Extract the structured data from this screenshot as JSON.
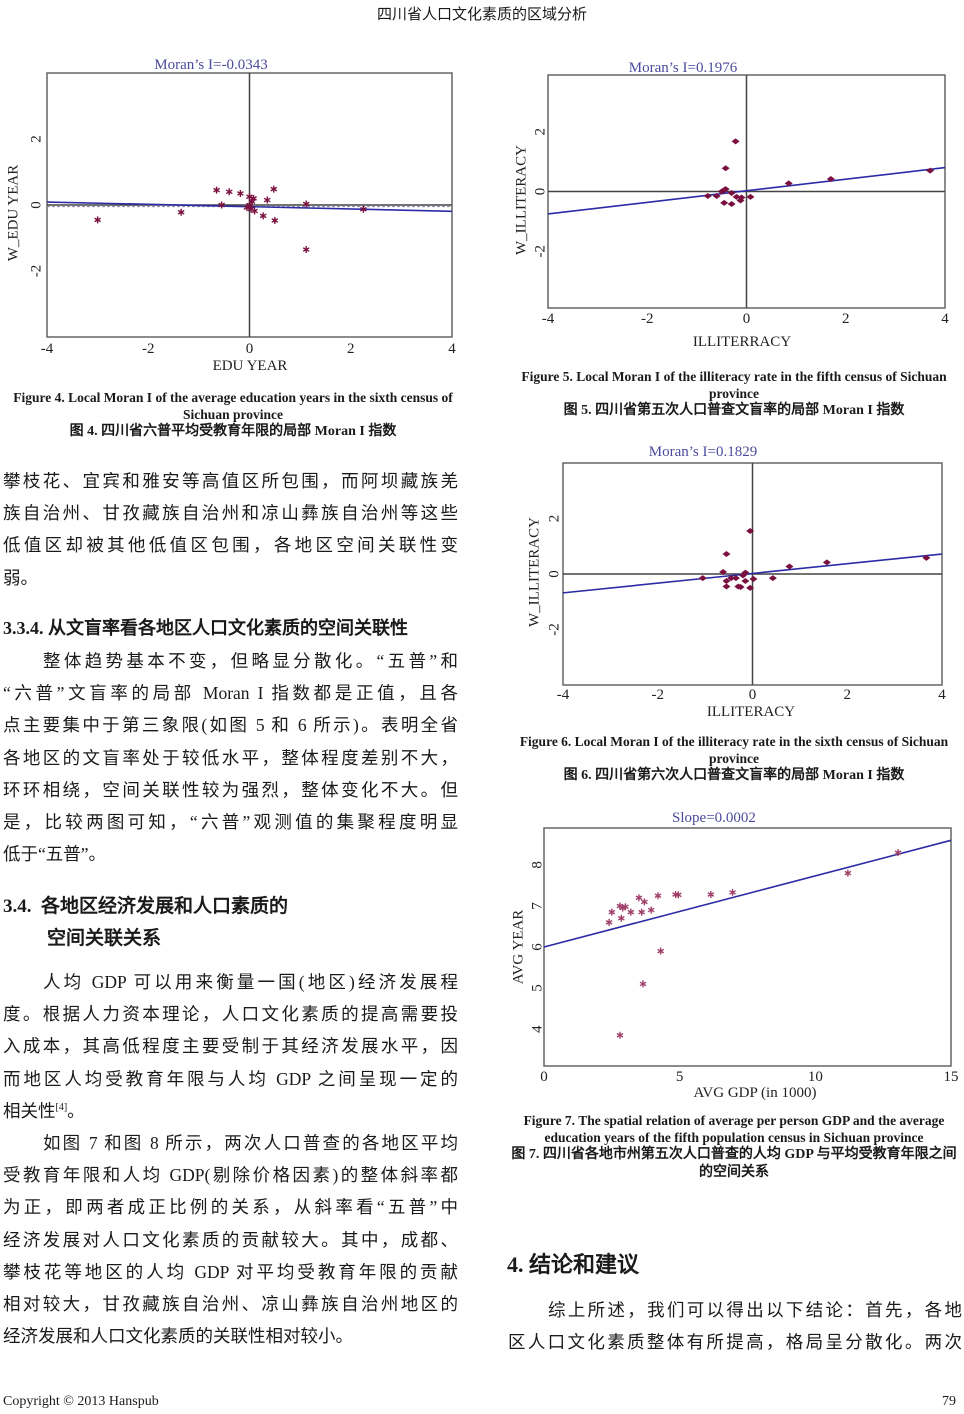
{
  "header": {
    "running_title": "四川省人口文化素质的区域分析"
  },
  "footer": {
    "copyright": "Copyright © 2013 Hanspub",
    "page_number": "79"
  },
  "figures": {
    "fig4": {
      "caption_en": "Figure 4. Local Moran I of the average education years in the sixth census of Sichuan province",
      "caption_zh": "图 4.  四川省六普平均受教育年限的局部 Moran I 指数"
    },
    "fig5": {
      "caption_en": "Figure 5. Local Moran I of the illiteracy rate in the fifth census of Sichuan province",
      "caption_zh": "图 5.  四川省第五次人口普查文盲率的局部 Moran I 指数"
    },
    "fig6": {
      "caption_en": "Figure 6. Local Moran I of the illiteracy rate in the sixth census of Sichuan province",
      "caption_zh": "图 6.  四川省第六次人口普查文盲率的局部 Moran I 指数"
    },
    "fig7": {
      "caption_en": "Figure 7. The spatial relation of average per person GDP and the average education years of the fifth population census in Sichuan province",
      "caption_zh": "图 7.  四川省各地市州第五次人口普查的人均 GDP 与平均受教育年限之间的空间关系"
    }
  },
  "left_column": {
    "para1": [
      "攀枝花、宜宾和雅安等高值区所包围，而阿坝藏族羌",
      "族自治州、甘孜藏族自治州和凉山彝族自治州等这些",
      "低值区却被其他低值区包围，各地区空间关联性变",
      "弱。"
    ],
    "heading_334": "3.3.4.  从文盲率看各地区人口文化素质的空间关联性",
    "para2": [
      "整体趋势基本不变，但略显分散化。“五普”和",
      "“六普”文盲率的局部 Moran I 指数都是正值，且各",
      "点主要集中于第三象限(如图 5 和 6 所示)。表明全省",
      "各地区的文盲率处于较低水平，整体程度差别不大，",
      "环环相绕，空间关联性较为强烈，整体变化不大。但",
      "是，比较两图可知，“六普”观测值的集聚程度明显",
      "低于“五普”。"
    ],
    "heading_34_num": "3.4.",
    "heading_34_line1": "各地区经济发展和人口素质的",
    "heading_34_line2": "空间关联关系",
    "para3": [
      "人均  GDP  可以用来衡量一国(地区)经济发展程",
      "度。根据人力资本理论，人口文化素质的提高需要投",
      "入成本，其高低程度主要受制于其经济发展水平，因",
      "而地区人均受教育年限与人均  GDP  之间呈现一定的",
      "相关性"
    ],
    "para3_ref": "[4]",
    "para3_end": "。",
    "para4": [
      "如图 7 和图 8 所示，两次人口普查的各地区平均",
      "受教育年限和人均 GDP(剔除价格因素)的整体斜率都",
      "为正，即两者成正比例的关系，从斜率看“五普”中",
      "经济发展对人口文化素质的贡献较大。其中，成都、",
      "攀枝花等地区的人均  GDP  对平均受教育年限的贡献",
      "相对较大，甘孜藏族自治州、凉山彝族自治州地区的",
      "经济发展和人口文化素质的关联性相对较小。"
    ]
  },
  "right_column": {
    "heading_4": "4.  结论和建议",
    "para5": [
      "综上所述，我们可以得出以下结论：首先，各地",
      "区人口文化素质整体有所提高，格局呈分散化。两次"
    ]
  },
  "colors": {
    "title": "#4b4b9c",
    "regression": "#2b2ba6",
    "marker": "#7a1040",
    "axis": "#555555"
  },
  "chart_data": [
    {
      "type": "scatter",
      "marker": "asterisk",
      "title": "Moran’s I=-0.0343",
      "xlabel": "EDU YEAR",
      "ylabel": "W_EDU YEAR",
      "xlim": [
        -4,
        4
      ],
      "ylim": [
        -4,
        4
      ],
      "xticks": [
        "-4",
        "-2",
        "0",
        "2",
        "4"
      ],
      "yticks": [
        "-2",
        "0",
        "2"
      ],
      "zero_axes": true,
      "fit_line": [
        [
          -4,
          0.09
        ],
        [
          4,
          -0.19
        ]
      ],
      "reference_line_y": -0.05,
      "points": [
        [
          -3.0,
          -0.45
        ],
        [
          -1.35,
          -0.22
        ],
        [
          -0.65,
          0.45
        ],
        [
          -0.4,
          0.4
        ],
        [
          -0.18,
          0.35
        ],
        [
          -0.55,
          0.0
        ],
        [
          0.0,
          0.25
        ],
        [
          0.08,
          0.2
        ],
        [
          0.05,
          0.1
        ],
        [
          0.0,
          0.0
        ],
        [
          -0.05,
          -0.08
        ],
        [
          0.03,
          -0.12
        ],
        [
          0.1,
          -0.18
        ],
        [
          0.27,
          -0.33
        ],
        [
          0.35,
          0.15
        ],
        [
          0.48,
          0.48
        ],
        [
          0.5,
          -0.47
        ],
        [
          1.12,
          0.03
        ],
        [
          1.12,
          -1.35
        ],
        [
          2.25,
          -0.13
        ]
      ]
    },
    {
      "type": "scatter",
      "marker": "diamond",
      "title": "Moran’s I=0.1976",
      "xlabel": "ILLITERRACY",
      "ylabel": "W_ILLITERACY",
      "xlim": [
        -4,
        4
      ],
      "ylim": [
        -3.9,
        3.9
      ],
      "xticks": [
        "-4",
        "-2",
        "0",
        "2",
        "4"
      ],
      "yticks": [
        "-2",
        "0",
        "2"
      ],
      "zero_axes": true,
      "fit_line": [
        [
          -4,
          -0.75
        ],
        [
          4,
          0.8
        ]
      ],
      "points": [
        [
          -0.78,
          -0.15
        ],
        [
          -0.6,
          -0.15
        ],
        [
          -0.5,
          0.0
        ],
        [
          -0.45,
          0.05
        ],
        [
          -0.42,
          0.08
        ],
        [
          -0.22,
          1.68
        ],
        [
          -0.42,
          0.78
        ],
        [
          -0.3,
          -0.05
        ],
        [
          -0.2,
          -0.18
        ],
        [
          -0.1,
          -0.2
        ],
        [
          -0.12,
          -0.3
        ],
        [
          0.08,
          -0.18
        ],
        [
          -0.45,
          -0.38
        ],
        [
          -0.3,
          -0.42
        ],
        [
          0.85,
          0.27
        ],
        [
          1.7,
          0.42
        ],
        [
          3.7,
          0.7
        ]
      ]
    },
    {
      "type": "scatter",
      "marker": "diamond",
      "title": "Moran’s I=0.1829",
      "xlabel": "ILLITERACY",
      "ylabel": "W_ILLITERACY",
      "xlim": [
        -4,
        4
      ],
      "ylim": [
        -4,
        4
      ],
      "xticks": [
        "-4",
        "-2",
        "0",
        "2",
        "4"
      ],
      "yticks": [
        "-2",
        "0",
        "2"
      ],
      "zero_axes": true,
      "fit_line": [
        [
          -4,
          -0.68
        ],
        [
          4,
          0.72
        ]
      ],
      "points": [
        [
          -1.05,
          -0.15
        ],
        [
          -0.62,
          0.07
        ],
        [
          -0.55,
          0.72
        ],
        [
          -0.55,
          -0.25
        ],
        [
          -0.55,
          -0.45
        ],
        [
          -0.45,
          -0.15
        ],
        [
          -0.35,
          -0.15
        ],
        [
          -0.3,
          -0.45
        ],
        [
          -0.25,
          -0.47
        ],
        [
          -0.2,
          -0.05
        ],
        [
          -0.15,
          0.05
        ],
        [
          -0.15,
          -0.25
        ],
        [
          -0.05,
          1.55
        ],
        [
          -0.05,
          -0.5
        ],
        [
          0.02,
          -0.18
        ],
        [
          0.43,
          -0.15
        ],
        [
          0.78,
          0.27
        ],
        [
          1.57,
          0.42
        ],
        [
          3.67,
          0.58
        ]
      ]
    },
    {
      "type": "scatter",
      "marker": "asterisk",
      "title": "Slope=0.0002",
      "xlabel": "AVG GDP (in 1000)",
      "ylabel": "AVG YEAR",
      "xlim": [
        0,
        15
      ],
      "ylim": [
        3.1,
        8.9
      ],
      "xticks": [
        "0",
        "5",
        "10",
        "15"
      ],
      "yticks": [
        "4",
        "5",
        "6",
        "7",
        "8"
      ],
      "zero_axes": false,
      "fit_line": [
        [
          0,
          6.0
        ],
        [
          15,
          8.6
        ]
      ],
      "points": [
        [
          2.4,
          6.6
        ],
        [
          2.5,
          6.85
        ],
        [
          2.8,
          7.0
        ],
        [
          2.85,
          6.7
        ],
        [
          2.9,
          6.95
        ],
        [
          3.0,
          6.98
        ],
        [
          3.2,
          6.85
        ],
        [
          3.5,
          7.2
        ],
        [
          3.6,
          6.85
        ],
        [
          3.7,
          7.1
        ],
        [
          3.95,
          6.9
        ],
        [
          4.2,
          7.25
        ],
        [
          4.85,
          7.28
        ],
        [
          4.95,
          7.27
        ],
        [
          6.15,
          7.28
        ],
        [
          6.95,
          7.33
        ],
        [
          11.2,
          7.8
        ],
        [
          13.05,
          8.3
        ],
        [
          4.3,
          5.9
        ],
        [
          3.65,
          5.1
        ],
        [
          2.8,
          3.85
        ]
      ]
    }
  ]
}
